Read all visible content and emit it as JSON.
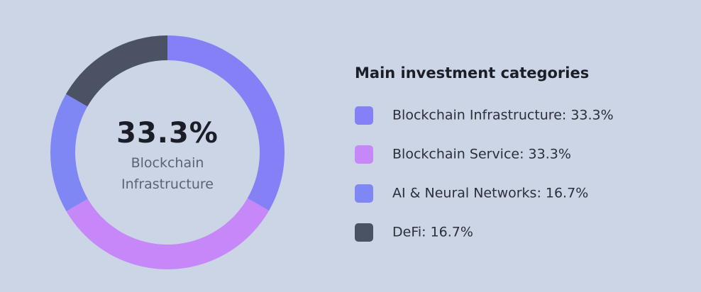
{
  "chart_data": {
    "type": "pie",
    "legend_title": "Main investment categories",
    "categories": [
      "Blockchain Infrastructure",
      "Blockchain Service",
      "AI & Neural Networks",
      "DeFi"
    ],
    "values": [
      33.3,
      33.3,
      16.7,
      16.7
    ],
    "value_labels": [
      "33.3%",
      "33.3%",
      "16.7%",
      "16.7%"
    ],
    "legend_labels": [
      "Blockchain Infrastructure: 33.3%",
      "Blockchain Service: 33.3%",
      "AI & Neural Networks: 16.7%",
      "DeFi: 16.7%"
    ],
    "colors": [
      "#8680f7",
      "#c688f8",
      "#7f87f5",
      "#4a5263"
    ],
    "donut": true,
    "legend": "right"
  }
}
